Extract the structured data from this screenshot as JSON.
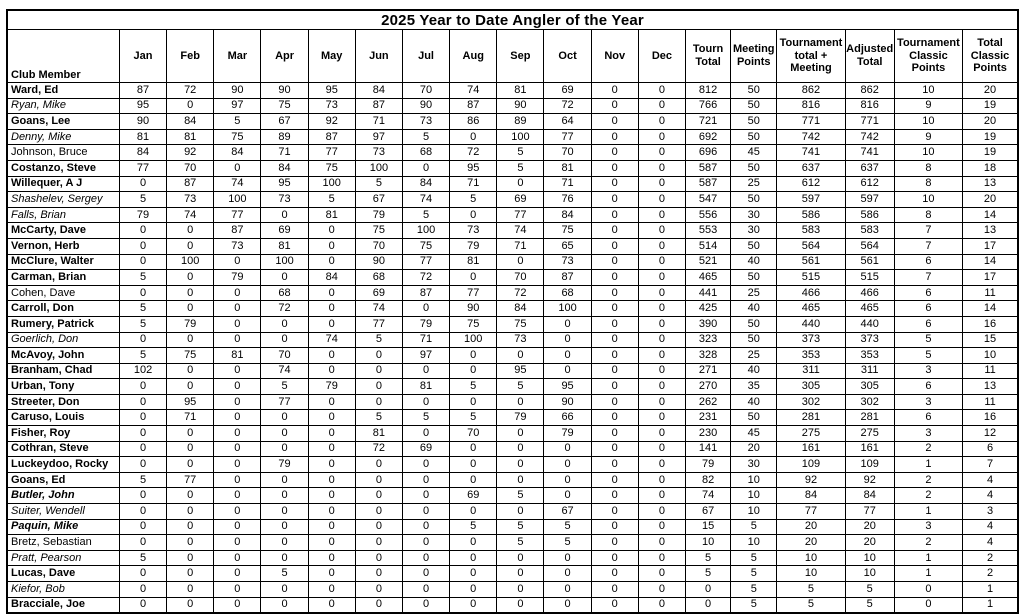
{
  "title": "2025 Year to Date Angler of the Year",
  "table": {
    "columns": [
      "Club Member",
      "Jan",
      "Feb",
      "Mar",
      "Apr",
      "May",
      "Jun",
      "Jul",
      "Aug",
      "Sep",
      "Oct",
      "Nov",
      "Dec",
      "Tourn\nTotal",
      "Meeting\nPoints",
      "Tournament\ntotal +\nMeeting",
      "Adjusted\nTotal",
      "Tournament\nClassic\nPoints",
      "Total\nClassic\nPoints"
    ],
    "rows": [
      {
        "name": "Ward, Ed",
        "style": "bold",
        "values": [
          87,
          72,
          90,
          90,
          95,
          84,
          70,
          74,
          81,
          69,
          0,
          0,
          812,
          50,
          862,
          862,
          10,
          20
        ]
      },
      {
        "name": "Ryan, Mike",
        "style": "italic",
        "values": [
          95,
          0,
          97,
          75,
          73,
          87,
          90,
          87,
          90,
          72,
          0,
          0,
          766,
          50,
          816,
          816,
          9,
          19
        ]
      },
      {
        "name": "Goans, Lee",
        "style": "bold",
        "values": [
          90,
          84,
          5,
          67,
          92,
          71,
          73,
          86,
          89,
          64,
          0,
          0,
          721,
          50,
          771,
          771,
          10,
          20
        ]
      },
      {
        "name": "Denny, Mike",
        "style": "italic",
        "values": [
          81,
          81,
          75,
          89,
          87,
          97,
          5,
          0,
          100,
          77,
          0,
          0,
          692,
          50,
          742,
          742,
          9,
          19
        ]
      },
      {
        "name": "Johnson, Bruce",
        "style": "regular",
        "values": [
          84,
          92,
          84,
          71,
          77,
          73,
          68,
          72,
          5,
          70,
          0,
          0,
          696,
          45,
          741,
          741,
          10,
          19
        ]
      },
      {
        "name": "Costanzo, Steve",
        "style": "bold",
        "values": [
          77,
          70,
          0,
          84,
          75,
          100,
          0,
          95,
          5,
          81,
          0,
          0,
          587,
          50,
          637,
          637,
          8,
          18
        ]
      },
      {
        "name": "Willequer, A J",
        "style": "bold",
        "values": [
          0,
          87,
          74,
          95,
          100,
          5,
          84,
          71,
          0,
          71,
          0,
          0,
          587,
          25,
          612,
          612,
          8,
          13
        ]
      },
      {
        "name": "Shashelev, Sergey",
        "style": "italic",
        "values": [
          5,
          73,
          100,
          73,
          5,
          67,
          74,
          5,
          69,
          76,
          0,
          0,
          547,
          50,
          597,
          597,
          10,
          20
        ]
      },
      {
        "name": "Falls, Brian",
        "style": "italic",
        "values": [
          79,
          74,
          77,
          0,
          81,
          79,
          5,
          0,
          77,
          84,
          0,
          0,
          556,
          30,
          586,
          586,
          8,
          14
        ]
      },
      {
        "name": "McCarty, Dave",
        "style": "bold",
        "values": [
          0,
          0,
          87,
          69,
          0,
          75,
          100,
          73,
          74,
          75,
          0,
          0,
          553,
          30,
          583,
          583,
          7,
          13
        ]
      },
      {
        "name": "Vernon, Herb",
        "style": "bold",
        "values": [
          0,
          0,
          73,
          81,
          0,
          70,
          75,
          79,
          71,
          65,
          0,
          0,
          514,
          50,
          564,
          564,
          7,
          17
        ]
      },
      {
        "name": "McClure, Walter",
        "style": "bold",
        "values": [
          0,
          100,
          0,
          100,
          0,
          90,
          77,
          81,
          0,
          73,
          0,
          0,
          521,
          40,
          561,
          561,
          6,
          14
        ]
      },
      {
        "name": "Carman, Brian",
        "style": "bold",
        "values": [
          5,
          0,
          79,
          0,
          84,
          68,
          72,
          0,
          70,
          87,
          0,
          0,
          465,
          50,
          515,
          515,
          7,
          17
        ]
      },
      {
        "name": "Cohen, Dave",
        "style": "regular",
        "values": [
          0,
          0,
          0,
          68,
          0,
          69,
          87,
          77,
          72,
          68,
          0,
          0,
          441,
          25,
          466,
          466,
          6,
          11
        ]
      },
      {
        "name": "Carroll, Don",
        "style": "bold",
        "values": [
          5,
          0,
          0,
          72,
          0,
          74,
          0,
          90,
          84,
          100,
          0,
          0,
          425,
          40,
          465,
          465,
          6,
          14
        ]
      },
      {
        "name": "Rumery, Patrick",
        "style": "bold",
        "values": [
          5,
          79,
          0,
          0,
          0,
          77,
          79,
          75,
          75,
          0,
          0,
          0,
          390,
          50,
          440,
          440,
          6,
          16
        ]
      },
      {
        "name": "Goerlich, Don",
        "style": "italic",
        "values": [
          0,
          0,
          0,
          0,
          74,
          5,
          71,
          100,
          73,
          0,
          0,
          0,
          323,
          50,
          373,
          373,
          5,
          15
        ]
      },
      {
        "name": "McAvoy, John",
        "style": "bold",
        "values": [
          5,
          75,
          81,
          70,
          0,
          0,
          97,
          0,
          0,
          0,
          0,
          0,
          328,
          25,
          353,
          353,
          5,
          10
        ]
      },
      {
        "name": "Branham, Chad",
        "style": "bold",
        "values": [
          102,
          0,
          0,
          74,
          0,
          0,
          0,
          0,
          95,
          0,
          0,
          0,
          271,
          40,
          311,
          311,
          3,
          11
        ]
      },
      {
        "name": "Urban, Tony",
        "style": "bold",
        "values": [
          0,
          0,
          0,
          5,
          79,
          0,
          81,
          5,
          5,
          95,
          0,
          0,
          270,
          35,
          305,
          305,
          6,
          13
        ]
      },
      {
        "name": "Streeter, Don",
        "style": "bold",
        "values": [
          0,
          95,
          0,
          77,
          0,
          0,
          0,
          0,
          0,
          90,
          0,
          0,
          262,
          40,
          302,
          302,
          3,
          11
        ]
      },
      {
        "name": "Caruso, Louis",
        "style": "bold",
        "values": [
          0,
          71,
          0,
          0,
          0,
          5,
          5,
          5,
          79,
          66,
          0,
          0,
          231,
          50,
          281,
          281,
          6,
          16
        ]
      },
      {
        "name": "Fisher, Roy",
        "style": "bold",
        "values": [
          0,
          0,
          0,
          0,
          0,
          81,
          0,
          70,
          0,
          79,
          0,
          0,
          230,
          45,
          275,
          275,
          3,
          12
        ]
      },
      {
        "name": "Cothran, Steve",
        "style": "bold",
        "values": [
          0,
          0,
          0,
          0,
          0,
          72,
          69,
          0,
          0,
          0,
          0,
          0,
          141,
          20,
          161,
          161,
          2,
          6
        ]
      },
      {
        "name": "Luckeydoo, Rocky",
        "style": "bold",
        "values": [
          0,
          0,
          0,
          79,
          0,
          0,
          0,
          0,
          0,
          0,
          0,
          0,
          79,
          30,
          109,
          109,
          1,
          7
        ]
      },
      {
        "name": "Goans, Ed",
        "style": "bold",
        "values": [
          5,
          77,
          0,
          0,
          0,
          0,
          0,
          0,
          0,
          0,
          0,
          0,
          82,
          10,
          92,
          92,
          2,
          4
        ]
      },
      {
        "name": "Butler, John",
        "style": "bolditalic",
        "values": [
          0,
          0,
          0,
          0,
          0,
          0,
          0,
          69,
          5,
          0,
          0,
          0,
          74,
          10,
          84,
          84,
          2,
          4
        ]
      },
      {
        "name": "Suiter, Wendell",
        "style": "italic",
        "values": [
          0,
          0,
          0,
          0,
          0,
          0,
          0,
          0,
          0,
          67,
          0,
          0,
          67,
          10,
          77,
          77,
          1,
          3
        ]
      },
      {
        "name": "Paquin, Mike",
        "style": "bolditalic",
        "values": [
          0,
          0,
          0,
          0,
          0,
          0,
          0,
          5,
          5,
          5,
          0,
          0,
          15,
          5,
          20,
          20,
          3,
          4
        ]
      },
      {
        "name": "Bretz, Sebastian",
        "style": "regular",
        "values": [
          0,
          0,
          0,
          0,
          0,
          0,
          0,
          0,
          5,
          5,
          0,
          0,
          10,
          10,
          20,
          20,
          2,
          4
        ]
      },
      {
        "name": "Pratt, Pearson",
        "style": "italic",
        "values": [
          5,
          0,
          0,
          0,
          0,
          0,
          0,
          0,
          0,
          0,
          0,
          0,
          5,
          5,
          10,
          10,
          1,
          2
        ]
      },
      {
        "name": "Lucas, Dave",
        "style": "bold",
        "values": [
          0,
          0,
          0,
          5,
          0,
          0,
          0,
          0,
          0,
          0,
          0,
          0,
          5,
          5,
          10,
          10,
          1,
          2
        ]
      },
      {
        "name": "Kiefor, Bob",
        "style": "italic",
        "values": [
          0,
          0,
          0,
          0,
          0,
          0,
          0,
          0,
          0,
          0,
          0,
          0,
          0,
          5,
          5,
          5,
          0,
          1
        ]
      },
      {
        "name": "Bracciale, Joe",
        "style": "bold",
        "values": [
          0,
          0,
          0,
          0,
          0,
          0,
          0,
          0,
          0,
          0,
          0,
          0,
          0,
          5,
          5,
          5,
          0,
          1
        ]
      }
    ]
  }
}
